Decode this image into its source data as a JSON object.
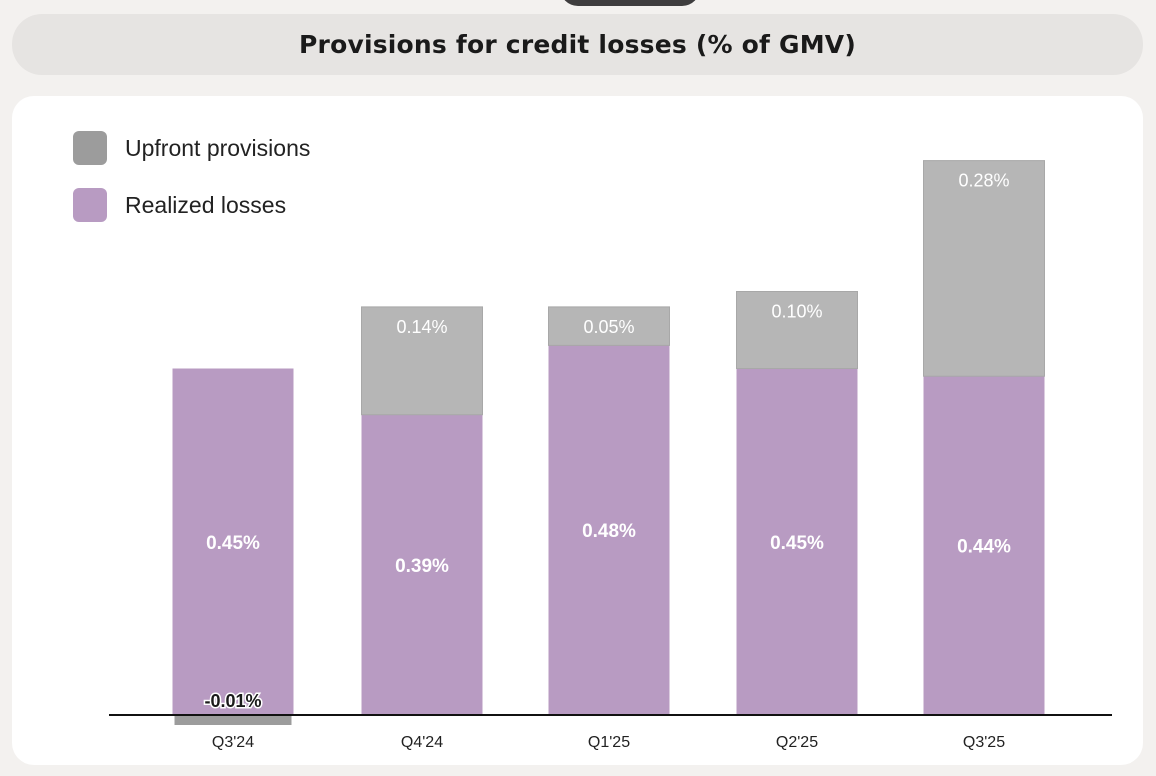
{
  "title": "Provisions for credit losses (% of GMV)",
  "legend": [
    {
      "label": "Upfront provisions",
      "color": "#9c9c9c"
    },
    {
      "label": "Realized losses",
      "color": "#b89bc2"
    }
  ],
  "colors": {
    "upfront_bar": "#b6b6b6",
    "realized_bar": "#b89bc2",
    "axis": "#111111"
  },
  "chart_data": {
    "type": "bar",
    "stacked": true,
    "title": "Provisions for credit losses (% of GMV)",
    "categories": [
      "Q3'24",
      "Q4'24",
      "Q1'25",
      "Q2'25",
      "Q3'25"
    ],
    "series": [
      {
        "name": "Realized losses",
        "values": [
          0.45,
          0.39,
          0.48,
          0.45,
          0.44
        ],
        "labels": [
          "0.45%",
          "0.39%",
          "0.48%",
          "0.45%",
          "0.44%"
        ]
      },
      {
        "name": "Upfront provisions",
        "values": [
          -0.01,
          0.14,
          0.05,
          0.1,
          0.28
        ],
        "labels": [
          "-0.01%",
          "0.14%",
          "0.05%",
          "0.10%",
          "0.28%"
        ]
      }
    ],
    "xlabel": "",
    "ylabel": "",
    "ylim": [
      -0.02,
      0.72
    ],
    "legend_position": "top-left",
    "grid": false
  }
}
